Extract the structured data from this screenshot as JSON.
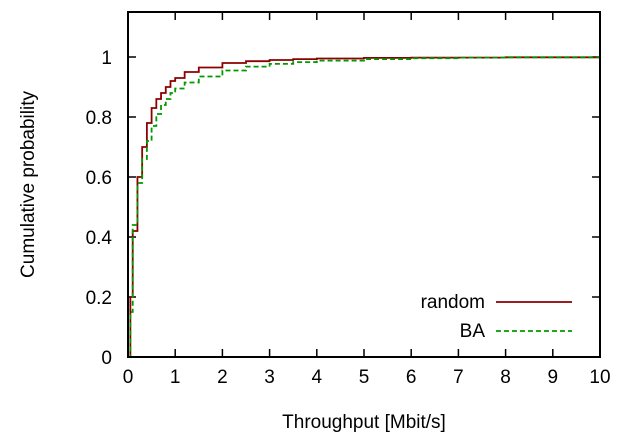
{
  "chart_data": {
    "type": "line",
    "title": "",
    "xlabel": "Throughput [Mbit/s]",
    "ylabel": "Cumulative probability",
    "xlim": [
      0,
      10
    ],
    "ylim": [
      0,
      1.15
    ],
    "x_ticks": [
      0,
      1,
      2,
      3,
      4,
      5,
      6,
      7,
      8,
      9,
      10
    ],
    "x_tick_labels": [
      "0",
      "1",
      "2",
      "3",
      "4",
      "5",
      "6",
      "7",
      "8",
      "9",
      "10"
    ],
    "y_ticks": [
      0,
      0.2,
      0.4,
      0.6,
      0.8,
      1
    ],
    "y_tick_labels": [
      "0",
      "0.2",
      "0.4",
      "0.6",
      "0.8",
      "1"
    ],
    "grid": false,
    "legend_position": "bottom-right",
    "series": [
      {
        "name": "random",
        "color": "#8b0000",
        "dash": "solid",
        "points": [
          [
            0,
            0
          ],
          [
            0.05,
            0.2
          ],
          [
            0.1,
            0.42
          ],
          [
            0.2,
            0.6
          ],
          [
            0.3,
            0.7
          ],
          [
            0.4,
            0.78
          ],
          [
            0.5,
            0.83
          ],
          [
            0.6,
            0.86
          ],
          [
            0.7,
            0.88
          ],
          [
            0.8,
            0.9
          ],
          [
            0.9,
            0.92
          ],
          [
            1.0,
            0.93
          ],
          [
            1.2,
            0.95
          ],
          [
            1.5,
            0.965
          ],
          [
            2.0,
            0.98
          ],
          [
            2.5,
            0.986
          ],
          [
            3.0,
            0.99
          ],
          [
            3.5,
            0.993
          ],
          [
            4.0,
            0.995
          ],
          [
            5.0,
            0.997
          ],
          [
            6.0,
            0.998
          ],
          [
            8.0,
            0.999
          ],
          [
            10.0,
            1.0
          ]
        ]
      },
      {
        "name": "BA",
        "color": "#009900",
        "dash": "dashed",
        "points": [
          [
            0,
            0
          ],
          [
            0.05,
            0.15
          ],
          [
            0.1,
            0.44
          ],
          [
            0.2,
            0.58
          ],
          [
            0.3,
            0.66
          ],
          [
            0.4,
            0.72
          ],
          [
            0.5,
            0.77
          ],
          [
            0.6,
            0.81
          ],
          [
            0.7,
            0.84
          ],
          [
            0.8,
            0.86
          ],
          [
            0.9,
            0.88
          ],
          [
            1.0,
            0.895
          ],
          [
            1.2,
            0.915
          ],
          [
            1.5,
            0.935
          ],
          [
            2.0,
            0.955
          ],
          [
            2.5,
            0.968
          ],
          [
            3.0,
            0.977
          ],
          [
            3.5,
            0.983
          ],
          [
            4.0,
            0.988
          ],
          [
            5.0,
            0.993
          ],
          [
            6.0,
            0.996
          ],
          [
            7.0,
            0.998
          ],
          [
            8.0,
            0.999
          ],
          [
            10.0,
            1.0
          ]
        ]
      }
    ]
  }
}
